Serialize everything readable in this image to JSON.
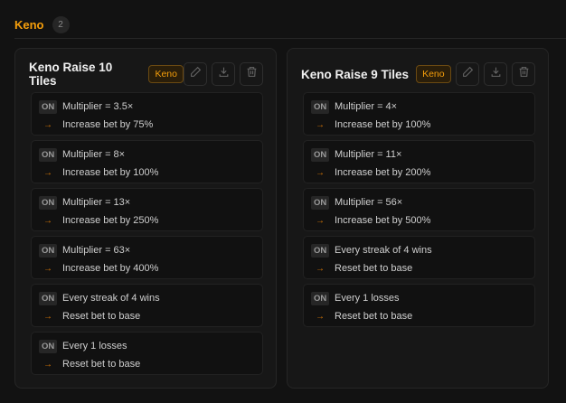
{
  "section": {
    "title": "Keno",
    "count": "2"
  },
  "accent": "#f59e0b",
  "cards": [
    {
      "title": "Keno Raise 10 Tiles",
      "tag": "Keno",
      "rules": [
        {
          "status": "ON",
          "condition": "Multiplier = 3.5×",
          "action": "Increase bet by 75%"
        },
        {
          "status": "ON",
          "condition": "Multiplier = 8×",
          "action": "Increase bet by 100%"
        },
        {
          "status": "ON",
          "condition": "Multiplier = 13×",
          "action": "Increase bet by 250%"
        },
        {
          "status": "ON",
          "condition": "Multiplier = 63×",
          "action": "Increase bet by 400%"
        },
        {
          "status": "ON",
          "condition": "Every streak of 4 wins",
          "action": "Reset bet to base"
        },
        {
          "status": "ON",
          "condition": "Every 1 losses",
          "action": "Reset bet to base"
        }
      ]
    },
    {
      "title": "Keno Raise 9 Tiles",
      "tag": "Keno",
      "rules": [
        {
          "status": "ON",
          "condition": "Multiplier = 4×",
          "action": "Increase bet by 100%"
        },
        {
          "status": "ON",
          "condition": "Multiplier = 11×",
          "action": "Increase bet by 200%"
        },
        {
          "status": "ON",
          "condition": "Multiplier = 56×",
          "action": "Increase bet by 500%"
        },
        {
          "status": "ON",
          "condition": "Every streak of 4 wins",
          "action": "Reset bet to base"
        },
        {
          "status": "ON",
          "condition": "Every 1 losses",
          "action": "Reset bet to base"
        }
      ]
    }
  ],
  "arrow": "→",
  "icons": [
    "pencil-icon",
    "download-icon",
    "trash-icon"
  ]
}
